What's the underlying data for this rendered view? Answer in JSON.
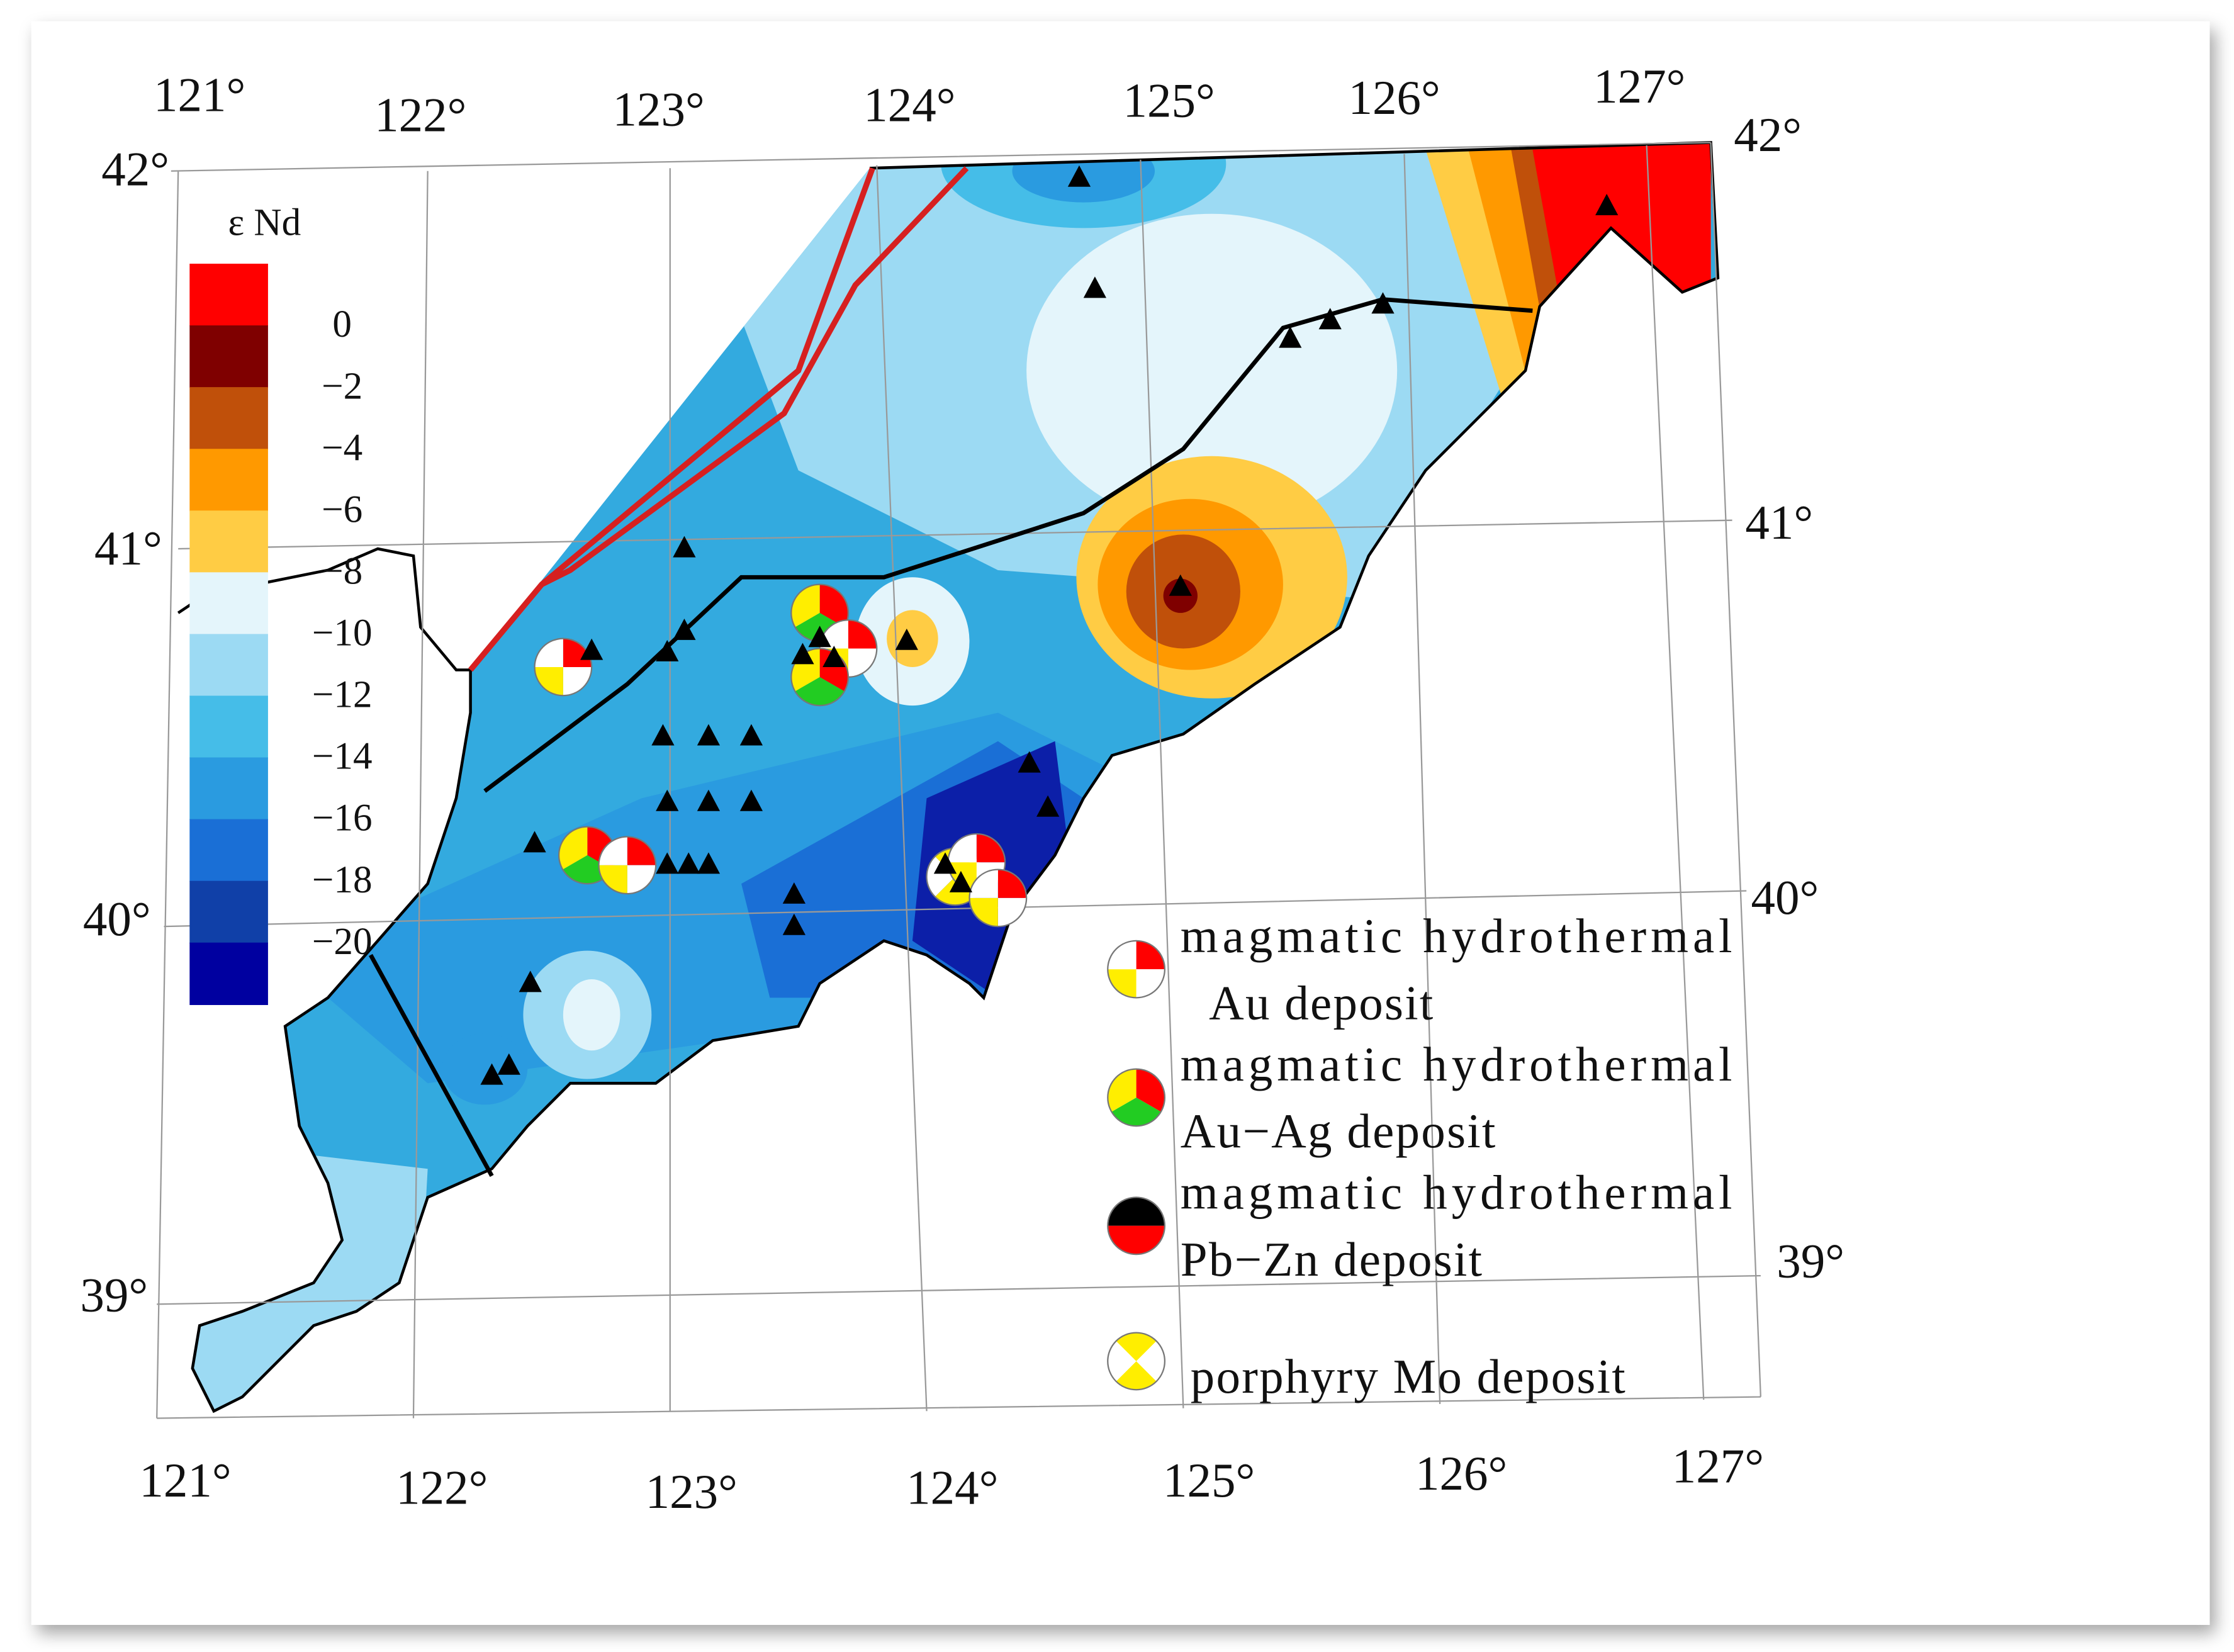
{
  "map": {
    "lon_top": [
      "121°",
      "122°",
      "123°",
      "124°",
      "125°",
      "126°",
      "127°"
    ],
    "lon_bottom": [
      "121°",
      "122°",
      "123°",
      "124°",
      "125°",
      "126°",
      "127°"
    ],
    "lat_left": [
      "42°",
      "41°",
      "40°",
      "39°"
    ],
    "lat_right": [
      "42°",
      "41°",
      "40°",
      "39°"
    ],
    "colorbar": {
      "title": "ε Nd",
      "labels": [
        "0",
        "−2",
        "−4",
        "−6",
        "−8",
        "−10",
        "−12",
        "−14",
        "−16",
        "−18",
        "−20"
      ]
    },
    "legend": [
      {
        "line1": "magmatic hydrothermal",
        "line2": "Au deposit"
      },
      {
        "line1": "magmatic hydrothermal",
        "line2": "Au−Ag deposit"
      },
      {
        "line1": "magmatic hydrothermal",
        "line2": "Pb−Zn deposit"
      },
      {
        "line1": "porphyry Mo deposit"
      }
    ]
  }
}
